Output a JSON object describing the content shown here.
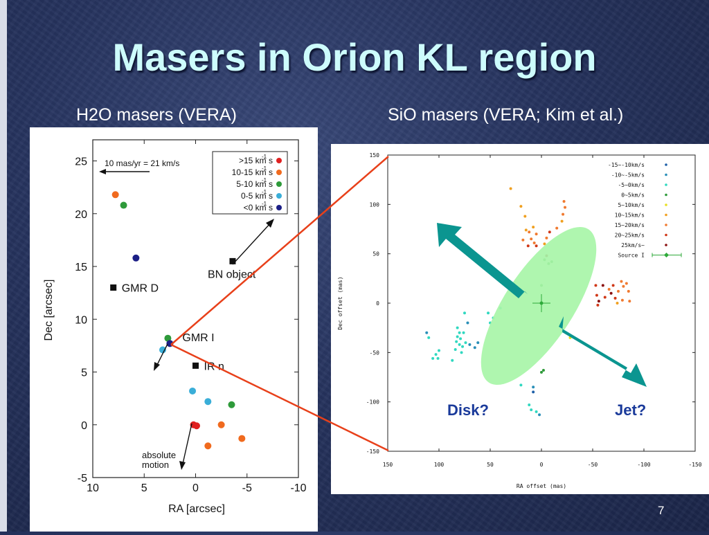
{
  "title": "Masers in Orion KL region",
  "subtitle_left": "H2O masers (VERA)",
  "subtitle_right": "SiO masers (VERA; Kim et al.)",
  "slide_number": "7",
  "colors": {
    "title": "#cdfcfc",
    "connector": "#e8401a",
    "arrow": "#0b9590",
    "disk": "#a8f5a8",
    "disk_label": "#1a3a9a"
  },
  "chart_data": [
    {
      "type": "scatter",
      "xlabel": "RA [arcsec]",
      "ylabel": "Dec [arcsec]",
      "xlim": [
        10,
        -10
      ],
      "ylim": [
        -5,
        27
      ],
      "x_ticks": [
        "10",
        "5",
        "0",
        "-5",
        "-10"
      ],
      "y_ticks": [
        "-5",
        "0",
        "5",
        "10",
        "15",
        "20",
        "25"
      ],
      "scale_bar_label": "10 mas/yr = 21 km/s",
      "legend": [
        {
          "label": ">15 km s",
          "sup": "-1",
          "color": "#e02020"
        },
        {
          "label": "10-15 km s",
          "sup": "-1",
          "color": "#f06a1e"
        },
        {
          "label": "5-10 km s",
          "sup": "-1",
          "color": "#2e9a3a"
        },
        {
          "label": "0-5 km s",
          "sup": "-1",
          "color": "#3aaed8"
        },
        {
          "label": "<0 km s",
          "sup": "-1",
          "color": "#1c1f86"
        }
      ],
      "sources": [
        {
          "label": "GMR D",
          "x": 8.0,
          "y": 13.0
        },
        {
          "label": "BN object",
          "x": -3.6,
          "y": 15.5
        },
        {
          "label": "GMR I",
          "x": 2.5,
          "y": 7.8
        },
        {
          "label": "IR n",
          "x": 0.0,
          "y": 5.6
        }
      ],
      "annotation": "absolute\nmotion",
      "points": [
        {
          "x": 7.8,
          "y": 21.8,
          "c": "#f06a1e"
        },
        {
          "x": 7.0,
          "y": 20.8,
          "c": "#2e9a3a"
        },
        {
          "x": 5.8,
          "y": 15.8,
          "c": "#1c1f86"
        },
        {
          "x": 2.7,
          "y": 8.2,
          "c": "#2e9a3a"
        },
        {
          "x": 2.5,
          "y": 7.7,
          "c": "#1c1f86"
        },
        {
          "x": 3.2,
          "y": 7.1,
          "c": "#3aaed8"
        },
        {
          "x": 0.3,
          "y": 3.2,
          "c": "#3aaed8"
        },
        {
          "x": -1.2,
          "y": 2.2,
          "c": "#3aaed8"
        },
        {
          "x": -3.5,
          "y": 1.9,
          "c": "#2e9a3a"
        },
        {
          "x": 0.2,
          "y": 0.0,
          "c": "#e02020"
        },
        {
          "x": -0.1,
          "y": -0.1,
          "c": "#e02020"
        },
        {
          "x": -2.5,
          "y": 0.0,
          "c": "#f06a1e"
        },
        {
          "x": -4.5,
          "y": -1.3,
          "c": "#f06a1e"
        },
        {
          "x": -1.2,
          "y": -2.0,
          "c": "#f06a1e"
        }
      ]
    },
    {
      "type": "scatter",
      "xlabel": "RA offset (mas)",
      "ylabel": "Dec offset (mas)",
      "xlim": [
        150,
        -150
      ],
      "ylim": [
        -150,
        150
      ],
      "x_ticks": [
        "150",
        "100",
        "50",
        "0",
        "-50",
        "-100",
        "-150"
      ],
      "y_ticks": [
        "150",
        "100",
        "50",
        "0",
        "-50",
        "-100",
        "-150"
      ],
      "legend": [
        {
          "label": "-15~-10km/s",
          "color": "#1e5fa8"
        },
        {
          "label": "-10~-5km/s",
          "color": "#2a8fb8"
        },
        {
          "label": "-5~0km/s",
          "color": "#30d8c0"
        },
        {
          "label": "0~5km/s",
          "color": "#2e9a3a"
        },
        {
          "label": "5~10km/s",
          "color": "#e8e020"
        },
        {
          "label": "10~15km/s",
          "color": "#f0a020"
        },
        {
          "label": "15~20km/s",
          "color": "#f07a30"
        },
        {
          "label": "20~25km/s",
          "color": "#d03818"
        },
        {
          "label": "25km/s~",
          "color": "#8a1010"
        },
        {
          "label": "Source I",
          "color": "#2eaa3a"
        }
      ],
      "labels": {
        "disk": "Disk?",
        "jet": "Jet?"
      },
      "points": [
        {
          "x": 30,
          "y": 116,
          "c": "#f0a020"
        },
        {
          "x": 20,
          "y": 98,
          "c": "#f0a020"
        },
        {
          "x": 16,
          "y": 88,
          "c": "#f0a020"
        },
        {
          "x": 15,
          "y": 74,
          "c": "#f0a020"
        },
        {
          "x": 12,
          "y": 72,
          "c": "#f07a30"
        },
        {
          "x": 10,
          "y": 65,
          "c": "#f07a30"
        },
        {
          "x": 18,
          "y": 64,
          "c": "#f07a30"
        },
        {
          "x": 13,
          "y": 58,
          "c": "#d03818"
        },
        {
          "x": 7,
          "y": 61,
          "c": "#f07a30"
        },
        {
          "x": 5,
          "y": 58,
          "c": "#d03818"
        },
        {
          "x": 8,
          "y": 77,
          "c": "#f0a020"
        },
        {
          "x": 5,
          "y": 70,
          "c": "#f07a30"
        },
        {
          "x": -22,
          "y": 103,
          "c": "#f07a30"
        },
        {
          "x": -23,
          "y": 97,
          "c": "#f07a30"
        },
        {
          "x": -21,
          "y": 90,
          "c": "#f07a30"
        },
        {
          "x": -20,
          "y": 83,
          "c": "#f0a020"
        },
        {
          "x": -15,
          "y": 76,
          "c": "#f07a30"
        },
        {
          "x": -8,
          "y": 72,
          "c": "#d03818"
        },
        {
          "x": -5,
          "y": 66,
          "c": "#f07a30"
        },
        {
          "x": -3,
          "y": 60,
          "c": "#f0a020"
        },
        {
          "x": -5,
          "y": 48,
          "c": "#8a1010"
        },
        {
          "x": -3,
          "y": 44,
          "c": "#2e9a3a"
        },
        {
          "x": -7,
          "y": 40,
          "c": "#2e9a3a"
        },
        {
          "x": -10,
          "y": 42,
          "c": "#2e9a3a"
        },
        {
          "x": 0,
          "y": 18,
          "c": "#2e9a3a"
        },
        {
          "x": -53,
          "y": 18,
          "c": "#d03818"
        },
        {
          "x": -54,
          "y": 8,
          "c": "#d03818"
        },
        {
          "x": -56,
          "y": 2,
          "c": "#8a1010"
        },
        {
          "x": -55,
          "y": -2,
          "c": "#d03818"
        },
        {
          "x": -60,
          "y": 18,
          "c": "#8a1010"
        },
        {
          "x": -62,
          "y": 6,
          "c": "#d03818"
        },
        {
          "x": -66,
          "y": 14,
          "c": "#f07a30"
        },
        {
          "x": -70,
          "y": 18,
          "c": "#d03818"
        },
        {
          "x": -68,
          "y": 10,
          "c": "#8a1010"
        },
        {
          "x": -72,
          "y": 5,
          "c": "#d03818"
        },
        {
          "x": -75,
          "y": 12,
          "c": "#f07a30"
        },
        {
          "x": -78,
          "y": 22,
          "c": "#f07a30"
        },
        {
          "x": -80,
          "y": 17,
          "c": "#f07a30"
        },
        {
          "x": -83,
          "y": 20,
          "c": "#f07a30"
        },
        {
          "x": -85,
          "y": 12,
          "c": "#f07a30"
        },
        {
          "x": -79,
          "y": 3,
          "c": "#f07a30"
        },
        {
          "x": -74,
          "y": 0,
          "c": "#f0a020"
        },
        {
          "x": -86,
          "y": 2,
          "c": "#f07a30"
        },
        {
          "x": 112,
          "y": -30,
          "c": "#2a8fb8"
        },
        {
          "x": 110,
          "y": -35,
          "c": "#30d8c0"
        },
        {
          "x": 100,
          "y": -48,
          "c": "#30d8c0"
        },
        {
          "x": 103,
          "y": -52,
          "c": "#30d8c0"
        },
        {
          "x": 106,
          "y": -56,
          "c": "#30d8c0"
        },
        {
          "x": 101,
          "y": -56,
          "c": "#30d8c0"
        },
        {
          "x": 82,
          "y": -25,
          "c": "#30d8c0"
        },
        {
          "x": 80,
          "y": -30,
          "c": "#30d8c0"
        },
        {
          "x": 82,
          "y": -34,
          "c": "#30d8c0"
        },
        {
          "x": 79,
          "y": -36,
          "c": "#30d8c0"
        },
        {
          "x": 83,
          "y": -39,
          "c": "#30d8c0"
        },
        {
          "x": 80,
          "y": -42,
          "c": "#30d8c0"
        },
        {
          "x": 77,
          "y": -44,
          "c": "#30d8c0"
        },
        {
          "x": 76,
          "y": -30,
          "c": "#30d8c0"
        },
        {
          "x": 74,
          "y": -40,
          "c": "#30d8c0"
        },
        {
          "x": 78,
          "y": -50,
          "c": "#30d8c0"
        },
        {
          "x": 84,
          "y": -47,
          "c": "#30d8c0"
        },
        {
          "x": 87,
          "y": -58,
          "c": "#30d8c0"
        },
        {
          "x": 72,
          "y": -20,
          "c": "#2a8fb8"
        },
        {
          "x": 75,
          "y": -10,
          "c": "#30d8c0"
        },
        {
          "x": 70,
          "y": -42,
          "c": "#2a8fb8"
        },
        {
          "x": 65,
          "y": -45,
          "c": "#2a8fb8"
        },
        {
          "x": 62,
          "y": -40,
          "c": "#2a8fb8"
        },
        {
          "x": 52,
          "y": -10,
          "c": "#30d8c0"
        },
        {
          "x": 50,
          "y": -20,
          "c": "#30d8c0"
        },
        {
          "x": 47,
          "y": -15,
          "c": "#30d8c0"
        },
        {
          "x": 40,
          "y": -5,
          "c": "#30d8c0"
        },
        {
          "x": 20,
          "y": -83,
          "c": "#30d8c0"
        },
        {
          "x": 8,
          "y": -85,
          "c": "#2a8fb8"
        },
        {
          "x": 12,
          "y": -103,
          "c": "#30d8c0"
        },
        {
          "x": 10,
          "y": -108,
          "c": "#30d8c0"
        },
        {
          "x": 5,
          "y": -110,
          "c": "#30d8c0"
        },
        {
          "x": 8,
          "y": -90,
          "c": "#1e5fa8"
        },
        {
          "x": 2,
          "y": -113,
          "c": "#2a8fb8"
        },
        {
          "x": 0,
          "y": -70,
          "c": "#2e9a3a"
        },
        {
          "x": -2,
          "y": -68,
          "c": "#2e9a3a"
        },
        {
          "x": -28,
          "y": -35,
          "c": "#e8e020"
        }
      ]
    }
  ]
}
